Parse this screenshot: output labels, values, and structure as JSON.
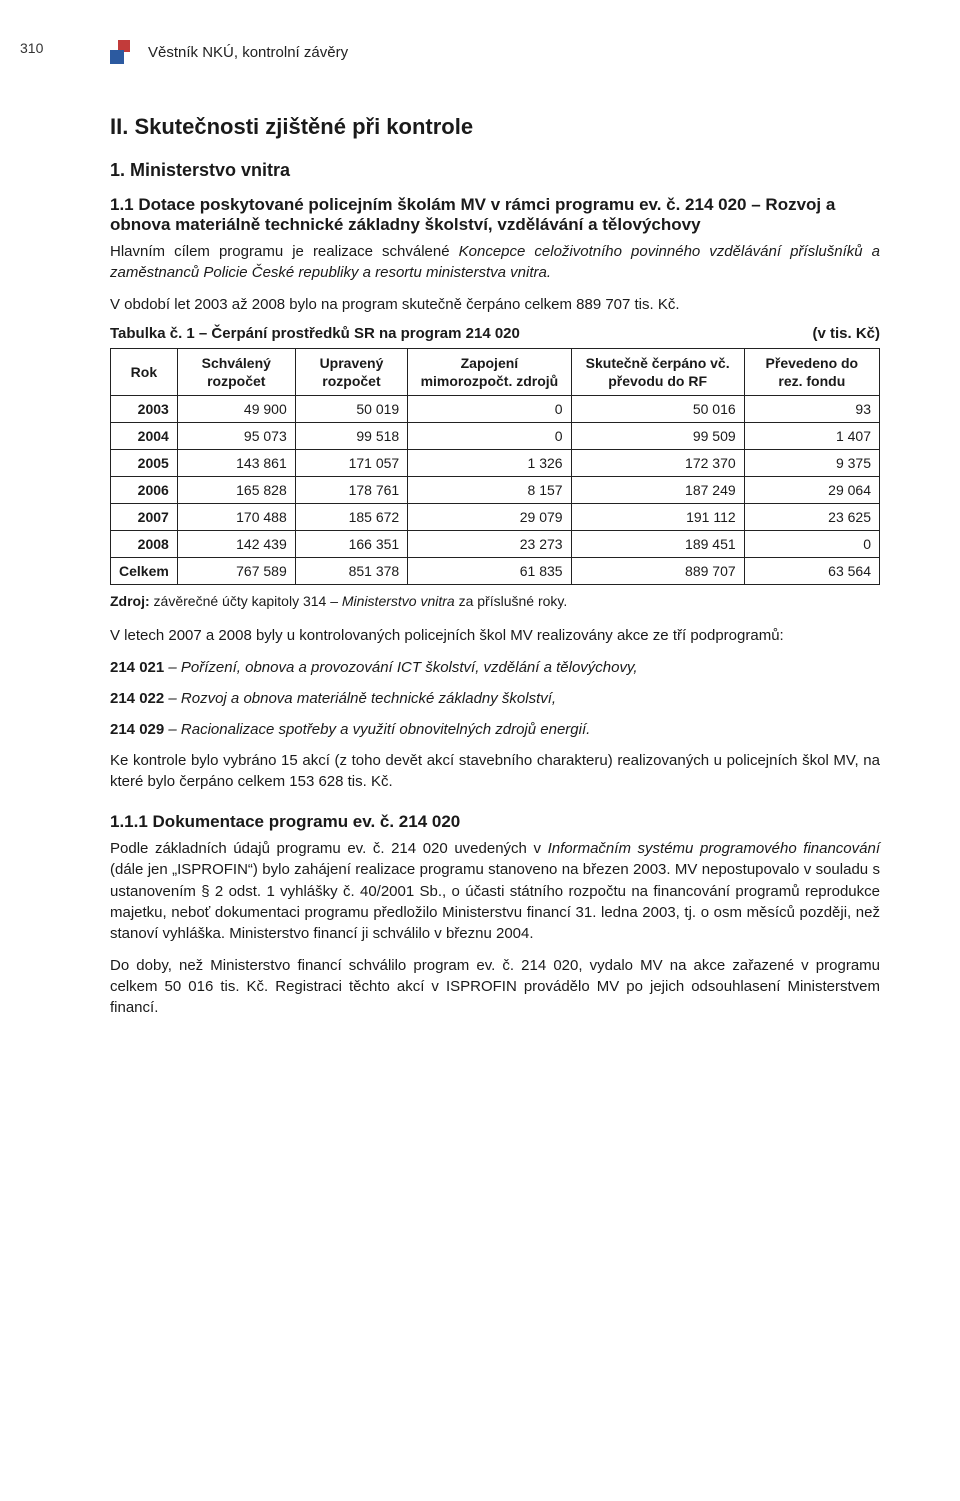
{
  "page_number": "310",
  "header_text": "Věstník NKÚ, kontrolní závěry",
  "logo": {
    "color_top": "#c23b3a",
    "color_bottom": "#2c5aa0"
  },
  "section_title": "II. Skutečnosti zjištěné při kontrole",
  "sub_1": "1. Ministerstvo vnitra",
  "sub_1_1": "1.1 Dotace poskytované policejním školám MV v rámci programu ev. č. 214 020 – Rozvoj a obnova materiálně technické základny školství, vzdělávání a tělovýchovy",
  "para1a": "Hlavním cílem programu je realizace schválené ",
  "para1b": "Koncepce celoživotního povinného vzdělávání příslušníků a zaměstnanců Policie České republiky a resortu ministerstva vnitra.",
  "para2": "V období let 2003 až 2008 bylo na program skutečně čerpáno celkem 889 707 tis. Kč.",
  "table_caption": "Tabulka č. 1 – Čerpání prostředků SR na program 214 020",
  "table_unit": "(v tis. Kč)",
  "table": {
    "columns": [
      "Rok",
      "Schválený rozpočet",
      "Upravený rozpočet",
      "Zapojení mimorozpočt. zdrojů",
      "Skutečně čerpáno vč. převodu do RF",
      "Převedeno do rez. fondu"
    ],
    "rows": [
      [
        "2003",
        "49 900",
        "50 019",
        "0",
        "50 016",
        "93"
      ],
      [
        "2004",
        "95 073",
        "99 518",
        "0",
        "99 509",
        "1 407"
      ],
      [
        "2005",
        "143 861",
        "171 057",
        "1 326",
        "172 370",
        "9 375"
      ],
      [
        "2006",
        "165 828",
        "178 761",
        "8 157",
        "187 249",
        "29 064"
      ],
      [
        "2007",
        "170 488",
        "185 672",
        "29 079",
        "191 112",
        "23 625"
      ],
      [
        "2008",
        "142 439",
        "166 351",
        "23 273",
        "189 451",
        "0"
      ],
      [
        "Celkem",
        "767 589",
        "851 378",
        "61 835",
        "889 707",
        "63 564"
      ]
    ],
    "border_color": "#222222",
    "fontsize": 14
  },
  "source_label": "Zdroj:",
  "source_text_a": " závěrečné účty kapitoly 314 – ",
  "source_text_b": "Ministerstvo vnitra",
  "source_text_c": " za příslušné roky.",
  "para3": "V letech 2007 a 2008 byly u kontrolovaných policejních škol MV realizovány akce ze tří podprogramů:",
  "subprogs": [
    {
      "code": "214 021",
      "text": " – Pořízení, obnova a provozování ICT školství, vzdělání a tělovýchovy,"
    },
    {
      "code": "214 022",
      "text": " – Rozvoj a obnova materiálně technické základny školství,"
    },
    {
      "code": "214 029",
      "text": " – Racionalizace spotřeby a využití obnovitelných zdrojů energií."
    }
  ],
  "para4": "Ke kontrole bylo vybráno 15 akcí (z toho devět akcí stavebního charakteru) realizovaných u policejních škol MV, na které bylo čerpáno celkem 153 628 tis. Kč.",
  "sub_1_1_1": "1.1.1 Dokumentace programu ev. č. 214 020",
  "para5a": "Podle základních údajů programu ev. č. 214 020 uvedených v ",
  "para5b": "Informačním systému programového financování",
  "para5c": " (dále jen „ISPROFIN“) bylo zahájení realizace programu stanoveno na březen 2003. MV nepostupovalo v souladu s ustanovením § 2 odst. 1 vyhlášky č. 40/2001 Sb., o účasti státního rozpočtu na financování programů reprodukce majetku, neboť dokumentaci programu předložilo Ministerstvu financí 31. ledna 2003, tj. o osm měsíců později, než stanoví vyhláška. Ministerstvo financí ji schválilo v březnu 2004.",
  "para6": "Do doby, než Ministerstvo financí schválilo program ev. č. 214 020, vydalo MV na akce zařazené v programu celkem 50 016 tis. Kč. Registraci těchto akcí v ISPROFIN provádělo MV po jejich odsouhlasení Ministerstvem financí."
}
